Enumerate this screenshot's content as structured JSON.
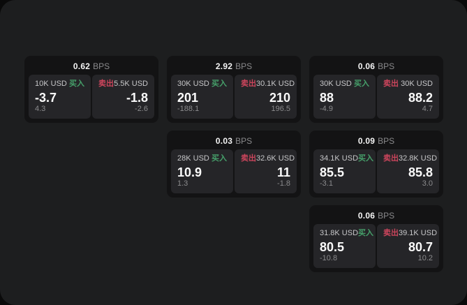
{
  "labels": {
    "buy": "买入",
    "sell": "卖出",
    "bps": "BPS"
  },
  "colors": {
    "buy": "#46a06a",
    "sell": "#cc455c",
    "panel_background": "#1d1e1f",
    "card_background": "#131314",
    "tile_background": "#252528"
  },
  "cards": [
    {
      "bps": "0.62",
      "col": 1,
      "row": 1,
      "buy": {
        "size": "10K USD",
        "value": "-3.7",
        "sub": "4.3"
      },
      "sell": {
        "size": "5.5K USD",
        "value": "-1.8",
        "sub": "-2.6"
      }
    },
    {
      "bps": "2.92",
      "col": 2,
      "row": 1,
      "buy": {
        "size": "30K USD",
        "value": "201",
        "sub": "-188.1"
      },
      "sell": {
        "size": "30.1K USD",
        "value": "210",
        "sub": "196.5"
      }
    },
    {
      "bps": "0.06",
      "col": 3,
      "row": 1,
      "buy": {
        "size": "30K USD",
        "value": "88",
        "sub": "-4.9"
      },
      "sell": {
        "size": "30K USD",
        "value": "88.2",
        "sub": "4.7"
      }
    },
    {
      "bps": "0.03",
      "col": 2,
      "row": 2,
      "buy": {
        "size": "28K USD",
        "value": "10.9",
        "sub": "1.3"
      },
      "sell": {
        "size": "32.6K USD",
        "value": "11",
        "sub": "-1.8"
      }
    },
    {
      "bps": "0.09",
      "col": 3,
      "row": 2,
      "buy": {
        "size": "34.1K USD",
        "value": "85.5",
        "sub": "-3.1"
      },
      "sell": {
        "size": "32.8K USD",
        "value": "85.8",
        "sub": "3.0"
      }
    },
    {
      "bps": "0.06",
      "col": 3,
      "row": 3,
      "buy": {
        "size": "31.8K USD",
        "value": "80.5",
        "sub": "-10.8"
      },
      "sell": {
        "size": "39.1K USD",
        "value": "80.7",
        "sub": "10.2"
      }
    }
  ]
}
